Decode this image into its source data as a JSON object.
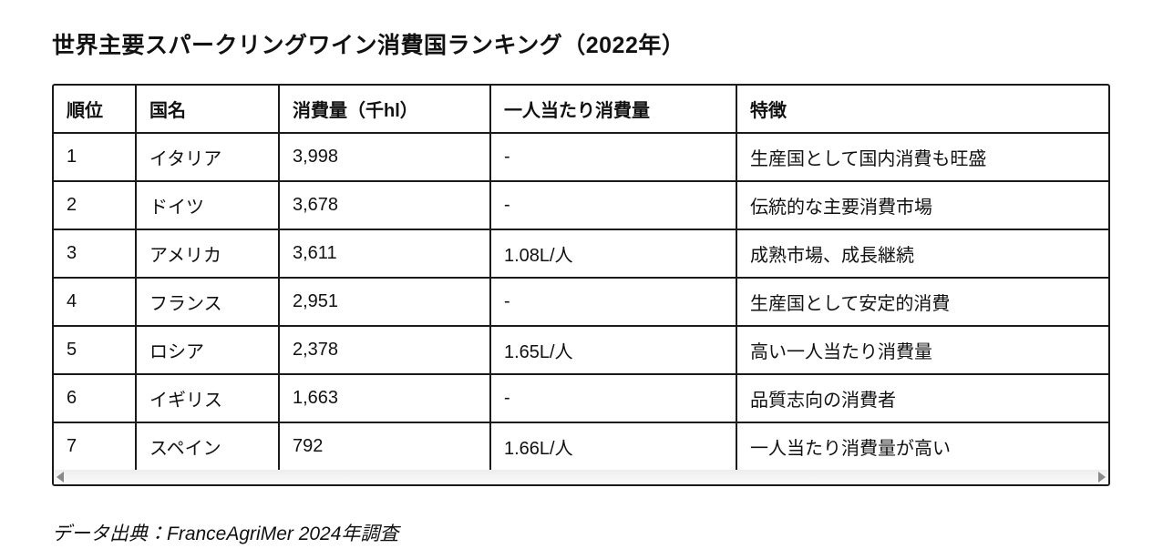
{
  "title": "世界主要スパークリングワイン消費国ランキング（2022年）",
  "table": {
    "headers": {
      "rank": "順位",
      "country": "国名",
      "consumption": "消費量（千hl）",
      "per_capita": "一人当たり消費量",
      "feature": "特徴"
    },
    "rows": [
      {
        "rank": "1",
        "country": "イタリア",
        "consumption": "3,998",
        "per_capita": "-",
        "feature": "生産国として国内消費も旺盛"
      },
      {
        "rank": "2",
        "country": "ドイツ",
        "consumption": "3,678",
        "per_capita": "-",
        "feature": "伝統的な主要消費市場"
      },
      {
        "rank": "3",
        "country": "アメリカ",
        "consumption": "3,611",
        "per_capita": "1.08L/人",
        "feature": "成熟市場、成長継続"
      },
      {
        "rank": "4",
        "country": "フランス",
        "consumption": "2,951",
        "per_capita": "-",
        "feature": "生産国として安定的消費"
      },
      {
        "rank": "5",
        "country": "ロシア",
        "consumption": "2,378",
        "per_capita": "1.65L/人",
        "feature": "高い一人当たり消費量"
      },
      {
        "rank": "6",
        "country": "イギリス",
        "consumption": "1,663",
        "per_capita": "-",
        "feature": "品質志向の消費者"
      },
      {
        "rank": "7",
        "country": "スペイン",
        "consumption": "792",
        "per_capita": "1.66L/人",
        "feature": "一人当たり消費量が高い"
      }
    ]
  },
  "footer": {
    "source": "データ出典：FranceAgriMer 2024年調査"
  },
  "colors": {
    "border_color": "#1a1a1a",
    "text_color": "#111111",
    "scrollbar_track": "#f7f7f7",
    "scrollbar_arrow": "#8a8a8a",
    "background": "#ffffff"
  }
}
